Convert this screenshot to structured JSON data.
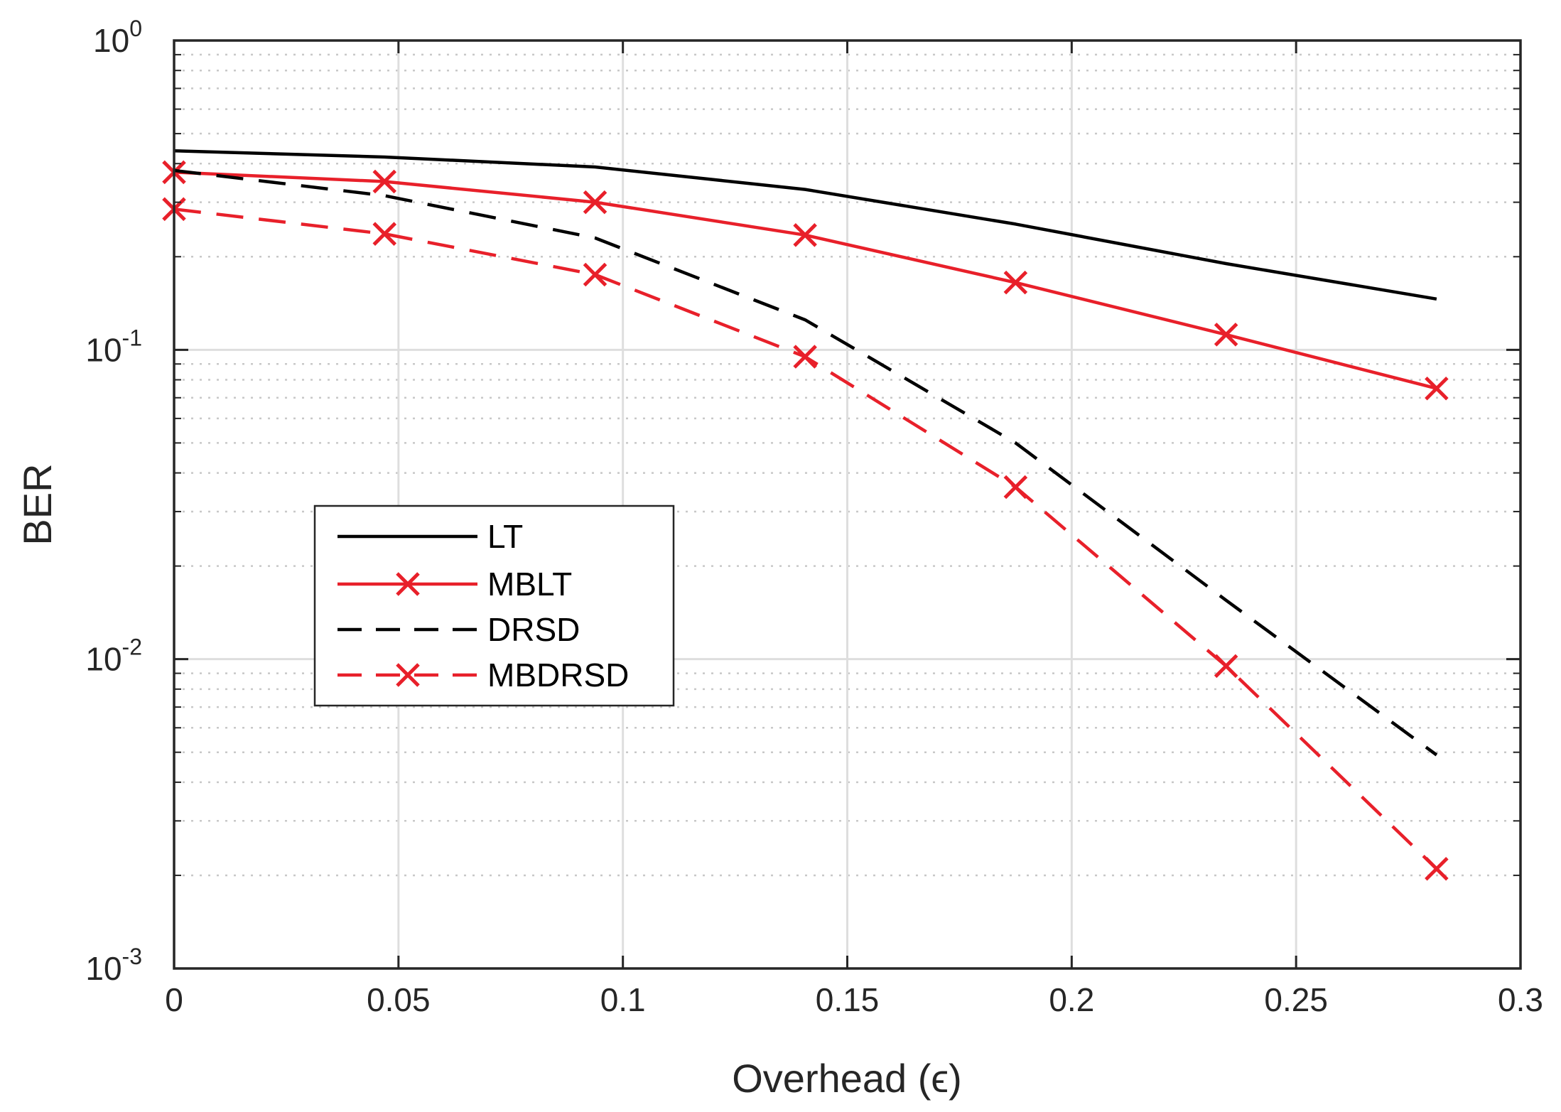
{
  "chart_data": {
    "type": "line",
    "title": "",
    "xlabel": "Overhead (ϵ)",
    "ylabel": "BER",
    "xscale": "linear",
    "yscale": "log",
    "xlim": [
      0,
      0.3
    ],
    "ylim": [
      0.001,
      1
    ],
    "xticks": [
      0,
      0.05,
      0.1,
      0.15,
      0.2,
      0.25,
      0.3
    ],
    "xtick_labels": [
      "0",
      "0.05",
      "0.1",
      "0.15",
      "0.2",
      "0.25",
      "0.3"
    ],
    "yticks": [
      0.001,
      0.01,
      0.1,
      1
    ],
    "ytick_labels": [
      {
        "base": "10",
        "exp": "-3"
      },
      {
        "base": "10",
        "exp": "-2"
      },
      {
        "base": "10",
        "exp": "-1"
      },
      {
        "base": "10",
        "exp": "0"
      }
    ],
    "grid": true,
    "minor_grid": true,
    "legend_position": "middle-left",
    "series": [
      {
        "name": "LT",
        "color": "#000000",
        "line_style": "solid",
        "marker": "none",
        "x": [
          0,
          0.0469,
          0.0938,
          0.1406,
          0.1875,
          0.2344,
          0.2813
        ],
        "y": [
          0.44,
          0.42,
          0.39,
          0.33,
          0.255,
          0.19,
          0.146
        ]
      },
      {
        "name": "MBLT",
        "color": "#e8202a",
        "line_style": "solid",
        "marker": "x",
        "x": [
          0,
          0.0469,
          0.0938,
          0.1406,
          0.1875,
          0.2344,
          0.2813
        ],
        "y": [
          0.375,
          0.35,
          0.3,
          0.235,
          0.165,
          0.112,
          0.075
        ]
      },
      {
        "name": "DRSD",
        "color": "#000000",
        "line_style": "dashed",
        "marker": "none",
        "x": [
          0,
          0.0469,
          0.0938,
          0.1406,
          0.1875,
          0.2344,
          0.2813
        ],
        "y": [
          0.38,
          0.315,
          0.23,
          0.125,
          0.05,
          0.0155,
          0.0049
        ]
      },
      {
        "name": "MBDRSD",
        "color": "#e8202a",
        "line_style": "dashed",
        "marker": "x",
        "x": [
          0,
          0.0469,
          0.0938,
          0.1406,
          0.1875,
          0.2344,
          0.2813
        ],
        "y": [
          0.285,
          0.237,
          0.175,
          0.095,
          0.036,
          0.0095,
          0.0021
        ]
      }
    ]
  }
}
